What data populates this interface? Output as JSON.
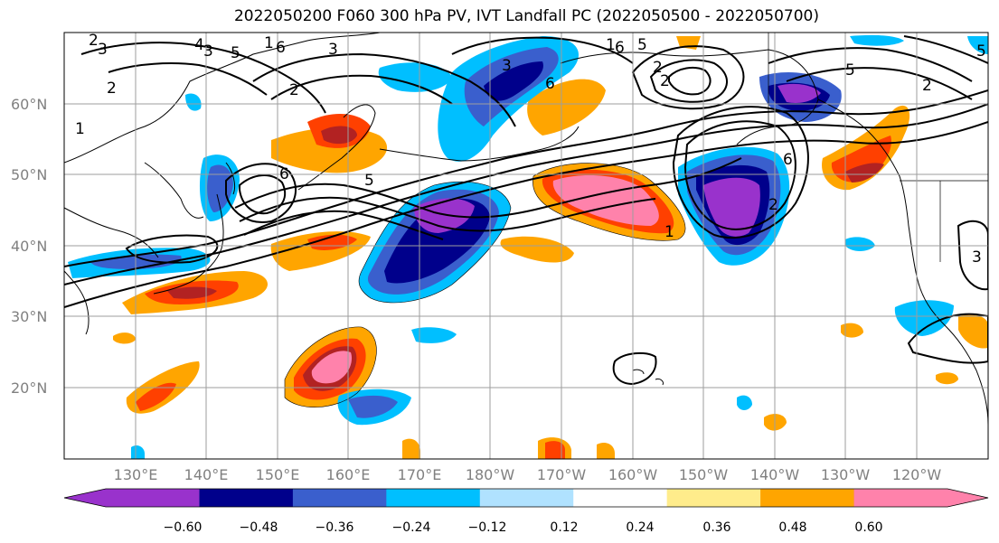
{
  "title": "2022050200 F060 300 hPa PV, IVT Landfall PC (2022050500 - 2022050700)",
  "lat_labels": [
    "60°N",
    "50°N",
    "40°N",
    "30°N",
    "20°N"
  ],
  "lon_labels": [
    "130°E",
    "140°E",
    "150°E",
    "160°E",
    "170°E",
    "180°W",
    "170°W",
    "160°W",
    "150°W",
    "140°W",
    "130°W",
    "120°W"
  ],
  "colorbar": {
    "ticks": [
      "−0.60",
      "−0.48",
      "−0.36",
      "−0.24",
      "−0.12",
      "0.12",
      "0.24",
      "0.36",
      "0.48",
      "0.60"
    ],
    "colors": [
      "#9932cc",
      "#00008b",
      "#3a5fcd",
      "#00bfff",
      "#b0e2ff",
      "#ffffff",
      "#ffec8b",
      "#ffa500",
      "#ff4000",
      "#b22222",
      "#ff82ab"
    ]
  },
  "contour_labels": [
    "2",
    "3",
    "1",
    "2",
    "3",
    "4",
    "5",
    "6",
    "6",
    "5",
    "3",
    "1",
    "2",
    "3",
    "6",
    "5",
    "6",
    "2",
    "1",
    "2",
    "1",
    "5",
    "2",
    "3",
    "2",
    "6",
    "5"
  ]
}
